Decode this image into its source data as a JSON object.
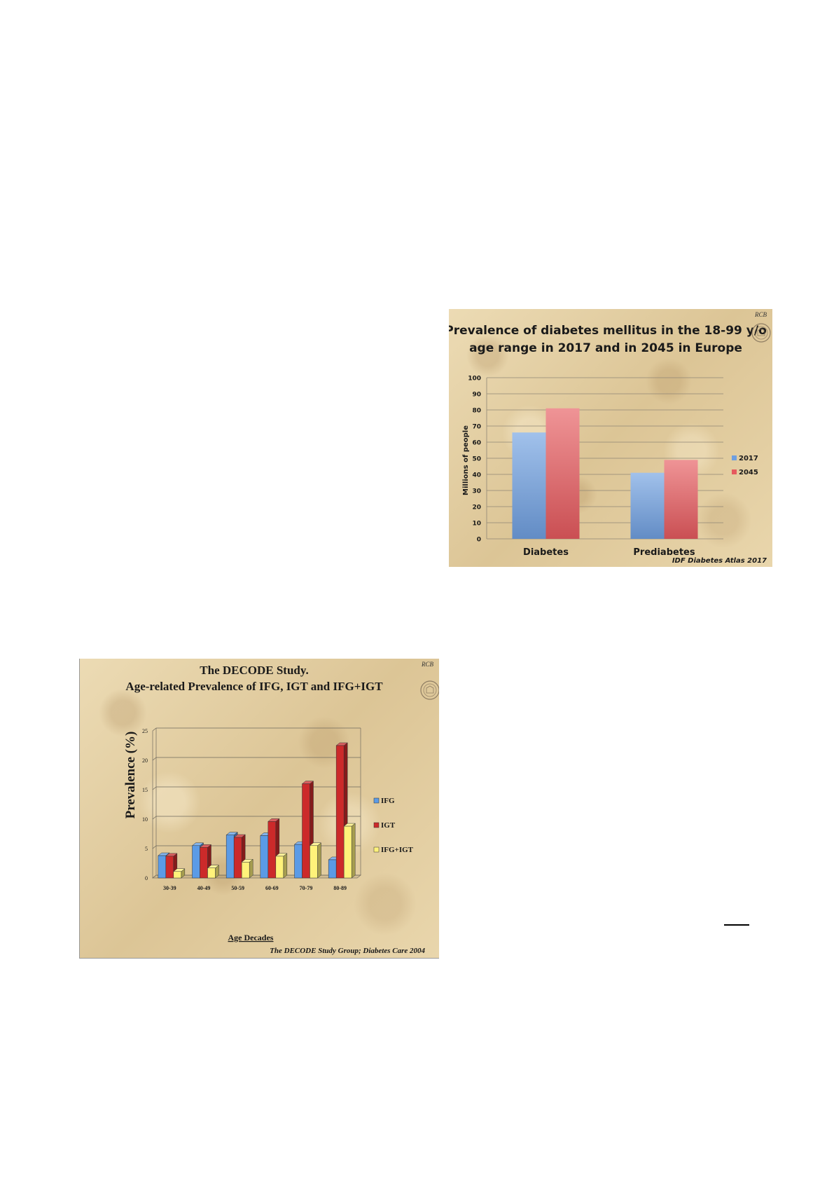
{
  "slides": [
    {
      "title_line1": "Prevalence of diabetes mellitus in the 18-99 y/o",
      "title_line2": "age range in 2017 and in 2045 in Europe",
      "monogram": "RCB",
      "source": "IDF Diabetes Atlas 2017",
      "seal_icon": "university-seal-icon"
    },
    {
      "title_line1": "The DECODE Study.",
      "title_line2": "Age-related Prevalence of IFG, IGT and IFG+IGT",
      "monogram": "RCB",
      "source": "The DECODE Study Group; Diabetes Care 2004",
      "seal_icon": "university-seal-icon"
    }
  ],
  "chart_data": [
    {
      "type": "bar",
      "title": "Prevalence of diabetes mellitus in the 18-99 y/o age range in 2017 and in 2045 in Europe",
      "categories": [
        "Diabetes",
        "Prediabetes"
      ],
      "series": [
        {
          "name": "2017",
          "values": [
            66,
            41
          ],
          "color": "#6f9fe0"
        },
        {
          "name": "2045",
          "values": [
            81,
            49
          ],
          "color": "#e65a5e"
        }
      ],
      "ylabel": "Millions of people",
      "xlabel": "",
      "ylim": [
        0,
        100
      ],
      "yticks": [
        0,
        10,
        20,
        30,
        40,
        50,
        60,
        70,
        80,
        90,
        100
      ],
      "grid": true,
      "legend": "right"
    },
    {
      "type": "bar",
      "title": "The DECODE Study. Age-related Prevalence of IFG, IGT and IFG+IGT",
      "categories": [
        "30-39",
        "40-49",
        "50-59",
        "60-69",
        "70-79",
        "80-89"
      ],
      "series": [
        {
          "name": "IFG",
          "values": [
            3.8,
            5.5,
            7.3,
            7.2,
            5.7,
            3.1
          ],
          "color": "#5b9be6"
        },
        {
          "name": "IGT",
          "values": [
            3.7,
            5.2,
            6.9,
            9.6,
            16.0,
            22.5
          ],
          "color": "#cc2a2a"
        },
        {
          "name": "IFG+IGT",
          "values": [
            1.1,
            1.7,
            2.7,
            3.7,
            5.5,
            8.8
          ],
          "color": "#fff27a"
        }
      ],
      "ylabel": "Prevalence (%)",
      "xlabel": "Age Decades",
      "ylim": [
        0,
        25
      ],
      "yticks": [
        0,
        5,
        10,
        15,
        20,
        25
      ],
      "grid": true,
      "legend": "right"
    }
  ]
}
